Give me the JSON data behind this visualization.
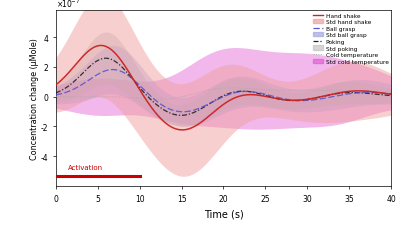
{
  "title": "",
  "xlabel": "Time (s)",
  "ylabel": "Concentration change (μMole)",
  "xlim": [
    0,
    40
  ],
  "ylim_data": [
    -6e-07,
    6e-07
  ],
  "xticks": [
    0,
    5,
    10,
    15,
    20,
    25,
    30,
    35,
    40
  ],
  "yticks": [
    -4,
    -2,
    0,
    2,
    4
  ],
  "background_color": "#ffffff",
  "activation_color": "#cc0000",
  "color_hand_shake": "#cc2222",
  "color_ball_grasp": "#5555cc",
  "color_poking": "#222222",
  "color_cold_temp": "#aaaaaa",
  "std_hand_shake": "#f0a0a0",
  "std_ball_grasp": "#9999dd",
  "std_poking": "#bbbbbb",
  "std_cold_temp": "#dd44cc"
}
